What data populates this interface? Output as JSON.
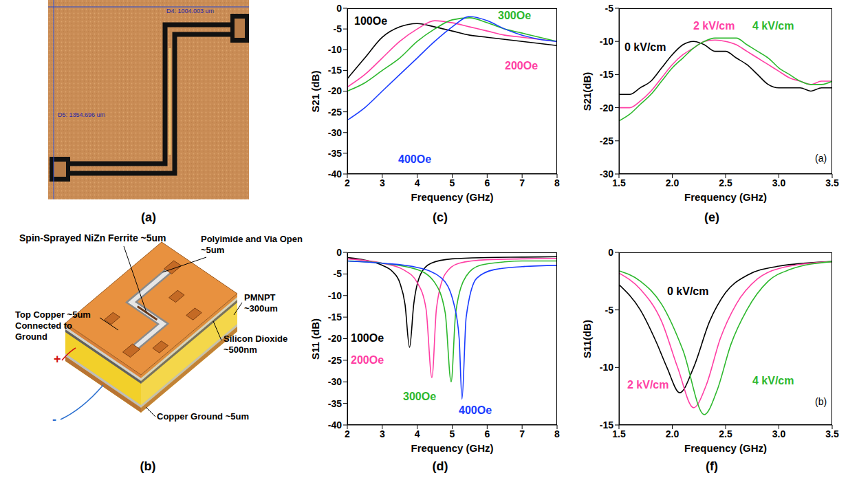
{
  "panels": {
    "a": {
      "panel": "(a)",
      "measurements": [
        "D4: 1004.003 um",
        "D5: 1354.696 um"
      ]
    },
    "b": {
      "panel": "(b)",
      "labels": {
        "ferrite": "Spin-Sprayed NiZn Ferrite ~5um",
        "polyimide": "Polyimide and Via Open ~5um",
        "top_copper": "Top Copper ~5um Connected to Ground",
        "pmnpt": "PMNPT ~300um",
        "oxide": "Silicon Dioxide ~500nm",
        "ground": "Copper Ground ~5um",
        "plus": "+",
        "minus": "-"
      }
    }
  },
  "chart_data": [
    {
      "panel": "(c)",
      "type": "line",
      "x_label": "Frequency (GHz)",
      "y_label": "S21 (dB)",
      "grid": false,
      "x": [
        2,
        2.5,
        3,
        3.5,
        4,
        4.5,
        5,
        5.5,
        6,
        6.5,
        7,
        7.5,
        8
      ],
      "xlim": [
        2,
        8
      ],
      "xticks": [
        2,
        3,
        4,
        5,
        6,
        7,
        8
      ],
      "ylim": [
        -40,
        0
      ],
      "yticks": [
        -40,
        -35,
        -30,
        -25,
        -20,
        -15,
        -10,
        -5,
        0
      ],
      "series": [
        {
          "name": "100Oe",
          "color": "#000000",
          "values": [
            -17,
            -12,
            -7,
            -4.5,
            -3.7,
            -4.5,
            -5.5,
            -6.5,
            -7,
            -7.5,
            -8,
            -8.5,
            -9
          ]
        },
        {
          "name": "200Oe",
          "color": "#ff3fa4",
          "values": [
            -19,
            -16,
            -12,
            -8,
            -5,
            -3,
            -3.5,
            -4.5,
            -5.5,
            -6.5,
            -7,
            -7.5,
            -8
          ]
        },
        {
          "name": "300Oe",
          "color": "#2db82d",
          "values": [
            -20,
            -18,
            -15,
            -12,
            -8,
            -5,
            -2.8,
            -2.3,
            -3.5,
            -5,
            -6,
            -7,
            -8
          ]
        },
        {
          "name": "400Oe",
          "color": "#1a3cff",
          "values": [
            -27,
            -24,
            -20,
            -16,
            -12,
            -8,
            -4.5,
            -2,
            -3,
            -5,
            -6.5,
            -7.5,
            -8
          ]
        }
      ]
    },
    {
      "panel": "(d)",
      "type": "line",
      "x_label": "Frequency (GHz)",
      "y_label": "S11 (dB)",
      "grid": false,
      "xlim": [
        2,
        8
      ],
      "xticks": [
        2,
        3,
        4,
        5,
        6,
        7,
        8
      ],
      "ylim": [
        -40,
        0
      ],
      "yticks": [
        -40,
        -35,
        -30,
        -25,
        -20,
        -15,
        -10,
        -5,
        0
      ],
      "series": [
        {
          "name": "100Oe",
          "color": "#000000",
          "x": [
            2,
            2.5,
            3,
            3.3,
            3.5,
            3.65,
            3.78,
            3.9,
            4.1,
            4.4,
            5,
            6,
            7,
            8
          ],
          "values": [
            -1.2,
            -1.8,
            -3,
            -4.5,
            -7,
            -12,
            -22,
            -12,
            -5,
            -2.5,
            -1.5,
            -1.2,
            -1.1,
            -1
          ]
        },
        {
          "name": "200Oe",
          "color": "#ff3fa4",
          "x": [
            2,
            3,
            3.6,
            4,
            4.25,
            4.42,
            4.55,
            4.8,
            5.2,
            6,
            7,
            8
          ],
          "values": [
            -1.5,
            -2.5,
            -4,
            -7,
            -13,
            -29,
            -13,
            -5,
            -2.5,
            -1.7,
            -1.5,
            -1.4
          ]
        },
        {
          "name": "300Oe",
          "color": "#2db82d",
          "x": [
            2,
            3,
            4,
            4.5,
            4.8,
            4.97,
            5.1,
            5.4,
            5.8,
            6.5,
            7,
            8
          ],
          "values": [
            -2,
            -2.5,
            -4,
            -7,
            -14,
            -30,
            -14,
            -5.5,
            -3,
            -2.2,
            -2,
            -2
          ]
        },
        {
          "name": "400Oe",
          "color": "#1a3cff",
          "x": [
            2,
            3,
            4,
            4.7,
            5.05,
            5.2,
            5.28,
            5.4,
            5.7,
            6.2,
            7,
            8
          ],
          "values": [
            -2,
            -2.5,
            -3.5,
            -6,
            -12,
            -20,
            -34,
            -15,
            -6,
            -4,
            -3.3,
            -3
          ]
        }
      ]
    },
    {
      "panel": "(e)",
      "inset_label": "(a)",
      "type": "line",
      "x_label": "Frequency (GHz)",
      "y_label": "S21(dB)",
      "grid": false,
      "x": [
        1.5,
        1.6,
        1.7,
        1.8,
        1.9,
        2.0,
        2.1,
        2.2,
        2.3,
        2.4,
        2.5,
        2.6,
        2.7,
        2.8,
        2.9,
        3.0,
        3.1,
        3.2,
        3.3,
        3.4,
        3.5
      ],
      "xlim": [
        1.5,
        3.5
      ],
      "xticks": [
        1.5,
        {
          "value": 2,
          "label": "2.0"
        },
        2.5,
        {
          "value": 3,
          "label": "3.0"
        },
        3.5
      ],
      "ylim": [
        -30,
        -5
      ],
      "yticks": [
        -30,
        -25,
        -20,
        -15,
        -10,
        -5
      ],
      "series": [
        {
          "name": "0 kV/cm",
          "color": "#000000",
          "values": [
            -18,
            -18,
            -17,
            -16,
            -14,
            -12,
            -10.5,
            -10,
            -10.5,
            -11.5,
            -11.5,
            -12.5,
            -13.5,
            -15,
            -16.5,
            -17,
            -17,
            -17,
            -17.5,
            -17,
            -17
          ]
        },
        {
          "name": "2 kV/cm",
          "color": "#ff3fa4",
          "values": [
            -20,
            -20,
            -19,
            -17.5,
            -15.5,
            -13.5,
            -12,
            -11,
            -10,
            -9.8,
            -10,
            -10.5,
            -11.5,
            -12.5,
            -13.5,
            -14.5,
            -15.5,
            -16,
            -16.5,
            -16,
            -16
          ]
        },
        {
          "name": "4 kV/cm",
          "color": "#2db82d",
          "values": [
            -22,
            -21,
            -19.5,
            -18,
            -16,
            -14,
            -12.5,
            -11,
            -10,
            -9.5,
            -9.5,
            -9.5,
            -10.5,
            -11.5,
            -12.5,
            -14,
            -15,
            -16,
            -16.5,
            -16.5,
            -16
          ]
        }
      ]
    },
    {
      "panel": "(f)",
      "inset_label": "(b)",
      "type": "line",
      "x_label": "Frequency (GHz)",
      "y_label": "S11(dB)",
      "grid": false,
      "xlim": [
        1.5,
        3.5
      ],
      "xticks": [
        1.5,
        {
          "value": 2,
          "label": "2.0"
        },
        2.5,
        {
          "value": 3,
          "label": "3.0"
        },
        3.5
      ],
      "ylim": [
        -15,
        0
      ],
      "yticks": [
        -15,
        -10,
        -5,
        0
      ],
      "series": [
        {
          "name": "0 kV/cm",
          "color": "#000000",
          "x": [
            1.5,
            1.7,
            1.85,
            1.95,
            2.07,
            2.2,
            2.35,
            2.5,
            2.7,
            3.0,
            3.5
          ],
          "values": [
            -2.8,
            -5,
            -7.8,
            -10,
            -12.2,
            -10,
            -6,
            -3.5,
            -2,
            -1.2,
            -0.8
          ]
        },
        {
          "name": "2 kV/cm",
          "color": "#ff3fa4",
          "x": [
            1.5,
            1.7,
            1.9,
            2.05,
            2.2,
            2.32,
            2.45,
            2.6,
            2.8,
            3.0,
            3.5
          ],
          "values": [
            -1.8,
            -3.2,
            -6,
            -10,
            -13.5,
            -11.5,
            -7.5,
            -4.5,
            -2.3,
            -1.4,
            -0.8
          ]
        },
        {
          "name": "4 kV/cm",
          "color": "#2db82d",
          "x": [
            1.5,
            1.7,
            1.9,
            2.1,
            2.3,
            2.42,
            2.55,
            2.7,
            2.9,
            3.1,
            3.5
          ],
          "values": [
            -1.6,
            -2.5,
            -4.5,
            -8.5,
            -14.1,
            -12,
            -8,
            -5,
            -2.5,
            -1.5,
            -0.8
          ]
        }
      ]
    }
  ]
}
